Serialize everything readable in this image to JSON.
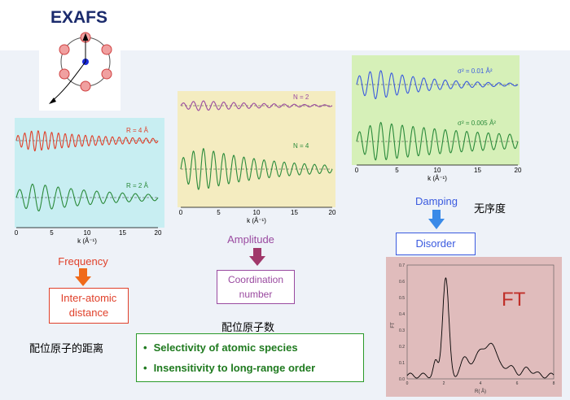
{
  "header": {
    "title": "EXAFS"
  },
  "panels": {
    "frequency": {
      "labels": [
        "R = 4 Å",
        "R = 2 Å"
      ],
      "ticks": [
        "0",
        "5",
        "10",
        "15",
        "20"
      ],
      "xlabel": "k (Å⁻¹)",
      "caption": "Frequency",
      "result": [
        "Inter-atomic",
        "distance"
      ],
      "cn": "配位原子的距离"
    },
    "amplitude": {
      "labels": [
        "N = 2",
        "N = 4"
      ],
      "ticks": [
        "0",
        "5",
        "10",
        "15",
        "20"
      ],
      "xlabel": "k (Å⁻¹)",
      "caption": "Amplitude",
      "result": [
        "Coordination",
        "number"
      ],
      "cn": "配位原子数"
    },
    "damping": {
      "labels": [
        "σ² = 0.01 Å²",
        "σ² = 0.005 Å²"
      ],
      "ticks": [
        "0",
        "5",
        "10",
        "15",
        "20"
      ],
      "xlabel": "k (Å⁻¹)",
      "caption": "Damping",
      "result": "Disorder",
      "cn": "无序度"
    }
  },
  "ft": {
    "title": "FT",
    "ylabel": "FT",
    "xlabel": "R( Å)",
    "yticks": [
      "0.0",
      "0.1",
      "0.2",
      "0.3",
      "0.4",
      "0.5",
      "0.6",
      "0.7"
    ],
    "xticks": [
      "0",
      "2",
      "4",
      "6",
      "8"
    ]
  },
  "features": [
    "Selectivity of atomic species",
    "Insensitivity to long-range order"
  ],
  "colors": {
    "red": "#e0402a",
    "green": "#2a8a3a",
    "purple": "#9a4aa0",
    "blue": "#3a5adf",
    "cyan_bg": "#c8eef2",
    "yellow_bg": "#f4ecc0",
    "green_bg": "#d6f0b8",
    "pink_bg": "#e0bcbc"
  }
}
